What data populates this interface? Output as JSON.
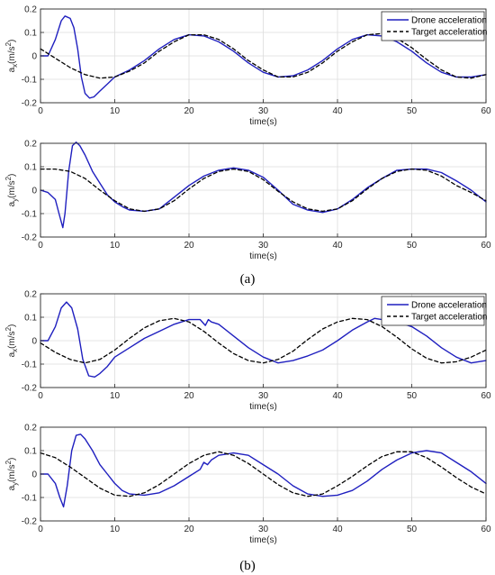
{
  "captions": {
    "a": "(a)",
    "b": "(b)"
  },
  "colors": {
    "drone": "#1f1fbf",
    "target": "#000000",
    "grid": "#dcdcdc",
    "axis": "#262626"
  },
  "chart_data": [
    {
      "type": "line",
      "panel": "a-top",
      "xlabel": "time(s)",
      "ylabel": "a_x(m/s^2)",
      "ylabel_main": "a",
      "ylabel_sub": "x",
      "ylabel_unit": "(m/s",
      "ylabel_sup": "2",
      "ylabel_close": ")",
      "xlim": [
        0,
        60
      ],
      "ylim": [
        -0.2,
        0.2
      ],
      "xticks": [
        0,
        10,
        20,
        30,
        40,
        50,
        60
      ],
      "yticks": [
        -0.2,
        -0.1,
        0,
        0.1,
        0.2
      ],
      "xtick_labels": [
        "0",
        "10",
        "20",
        "30",
        "40",
        "50",
        "60"
      ],
      "ytick_labels": [
        "-0.2",
        "-0.1",
        "0",
        "0.1",
        "0.2"
      ],
      "grid": true,
      "legend": "top-right",
      "series": [
        {
          "name": "Drone acceleration",
          "style": "solid",
          "x": [
            0,
            1,
            2,
            2.8,
            3.3,
            4,
            4.5,
            5,
            5.5,
            6,
            6.6,
            7.2,
            8,
            9,
            10,
            12,
            14,
            16,
            18,
            20,
            22,
            24,
            26,
            28,
            30,
            32,
            34,
            36,
            38,
            40,
            42,
            44,
            46,
            48,
            50,
            52,
            54,
            56,
            58,
            60
          ],
          "y": [
            0.0,
            0.0,
            0.07,
            0.15,
            0.17,
            0.16,
            0.12,
            0.03,
            -0.09,
            -0.16,
            -0.18,
            -0.175,
            -0.15,
            -0.12,
            -0.09,
            -0.06,
            -0.02,
            0.03,
            0.07,
            0.09,
            0.085,
            0.06,
            0.02,
            -0.03,
            -0.07,
            -0.09,
            -0.085,
            -0.06,
            -0.02,
            0.03,
            0.07,
            0.09,
            0.085,
            0.06,
            0.02,
            -0.03,
            -0.07,
            -0.09,
            -0.09,
            -0.08
          ]
        },
        {
          "name": "Target acceleration",
          "style": "dashed",
          "x": [
            0,
            2,
            4,
            6,
            8,
            10,
            12,
            14,
            16,
            18,
            20,
            22,
            24,
            26,
            28,
            30,
            32,
            34,
            36,
            38,
            40,
            42,
            44,
            46,
            48,
            50,
            52,
            54,
            56,
            58,
            60
          ],
          "y": [
            0.03,
            -0.01,
            -0.05,
            -0.08,
            -0.095,
            -0.09,
            -0.065,
            -0.03,
            0.02,
            0.06,
            0.09,
            0.09,
            0.07,
            0.03,
            -0.02,
            -0.06,
            -0.09,
            -0.09,
            -0.07,
            -0.03,
            0.02,
            0.06,
            0.09,
            0.095,
            0.075,
            0.035,
            -0.015,
            -0.06,
            -0.09,
            -0.095,
            -0.08
          ]
        }
      ]
    },
    {
      "type": "line",
      "panel": "a-bottom",
      "xlabel": "time(s)",
      "ylabel": "a_y(m/s^2)",
      "ylabel_main": "a",
      "ylabel_sub": "y",
      "ylabel_unit": "(m/s",
      "ylabel_sup": "2",
      "ylabel_close": ")",
      "xlim": [
        0,
        60
      ],
      "ylim": [
        -0.2,
        0.2
      ],
      "xticks": [
        0,
        10,
        20,
        30,
        40,
        50,
        60
      ],
      "yticks": [
        -0.2,
        -0.1,
        0,
        0.1,
        0.2
      ],
      "xtick_labels": [
        "0",
        "10",
        "20",
        "30",
        "40",
        "50",
        "60"
      ],
      "ytick_labels": [
        "-0.2",
        "-0.1",
        "0",
        "0.1",
        "0.2"
      ],
      "grid": true,
      "series": [
        {
          "name": "",
          "style": "solid",
          "x": [
            0,
            1,
            2,
            2.5,
            3,
            3.3,
            3.8,
            4.3,
            4.8,
            5.3,
            6,
            7,
            8,
            9,
            10,
            11,
            12,
            14,
            16,
            18,
            20,
            22,
            24,
            26,
            28,
            30,
            32,
            34,
            36,
            38,
            40,
            42,
            44,
            46,
            48,
            50,
            52,
            54,
            56,
            58,
            60
          ],
          "y": [
            0.0,
            -0.01,
            -0.04,
            -0.1,
            -0.16,
            -0.1,
            0.08,
            0.19,
            0.205,
            0.19,
            0.15,
            0.08,
            0.03,
            -0.02,
            -0.05,
            -0.07,
            -0.085,
            -0.09,
            -0.08,
            -0.03,
            0.02,
            0.06,
            0.085,
            0.095,
            0.085,
            0.055,
            0.0,
            -0.06,
            -0.085,
            -0.095,
            -0.08,
            -0.04,
            0.01,
            0.05,
            0.085,
            0.09,
            0.09,
            0.075,
            0.04,
            0.0,
            -0.05
          ]
        },
        {
          "name": "",
          "style": "dashed",
          "x": [
            0,
            2,
            4,
            6,
            8,
            10,
            12,
            14,
            16,
            18,
            20,
            22,
            24,
            26,
            28,
            30,
            32,
            34,
            36,
            38,
            40,
            42,
            44,
            46,
            48,
            50,
            52,
            54,
            56,
            58,
            60
          ],
          "y": [
            0.09,
            0.09,
            0.08,
            0.05,
            0.0,
            -0.045,
            -0.08,
            -0.09,
            -0.08,
            -0.045,
            0.005,
            0.05,
            0.08,
            0.09,
            0.08,
            0.045,
            -0.005,
            -0.05,
            -0.08,
            -0.09,
            -0.08,
            -0.045,
            0.005,
            0.05,
            0.08,
            0.09,
            0.085,
            0.06,
            0.02,
            -0.01,
            -0.045
          ]
        }
      ]
    },
    {
      "type": "line",
      "panel": "b-top",
      "xlabel": "time(s)",
      "ylabel": "a_x(m/s^2)",
      "ylabel_main": "a",
      "ylabel_sub": "x",
      "ylabel_unit": "(m/s",
      "ylabel_sup": "2",
      "ylabel_close": ")",
      "xlim": [
        0,
        60
      ],
      "ylim": [
        -0.2,
        0.2
      ],
      "xticks": [
        0,
        10,
        20,
        30,
        40,
        50,
        60
      ],
      "yticks": [
        -0.2,
        -0.1,
        0,
        0.1,
        0.2
      ],
      "xtick_labels": [
        "0",
        "10",
        "20",
        "30",
        "40",
        "50",
        "60"
      ],
      "ytick_labels": [
        "-0.2",
        "-0.1",
        "0",
        "0.1",
        "0.2"
      ],
      "grid": true,
      "legend": "top-right",
      "series": [
        {
          "name": "Drone acceleration",
          "style": "solid",
          "x": [
            0,
            1,
            2,
            2.8,
            3.5,
            4.2,
            5,
            5.7,
            6.5,
            7.3,
            8,
            9,
            10,
            12,
            14,
            16,
            18,
            20,
            21.5,
            22.2,
            22.6,
            23,
            24,
            26,
            28,
            30,
            32,
            34,
            36,
            38,
            40,
            42,
            44,
            45,
            46,
            48,
            50,
            52,
            54,
            56,
            58,
            60
          ],
          "y": [
            0.0,
            0.0,
            0.06,
            0.14,
            0.165,
            0.14,
            0.05,
            -0.08,
            -0.15,
            -0.155,
            -0.14,
            -0.11,
            -0.07,
            -0.03,
            0.01,
            0.04,
            0.07,
            0.09,
            0.09,
            0.065,
            0.09,
            0.08,
            0.07,
            0.02,
            -0.03,
            -0.07,
            -0.095,
            -0.085,
            -0.065,
            -0.04,
            0.0,
            0.045,
            0.08,
            0.095,
            0.09,
            0.08,
            0.06,
            0.02,
            -0.03,
            -0.07,
            -0.095,
            -0.085
          ]
        },
        {
          "name": "Target acceleration",
          "style": "dashed",
          "x": [
            0,
            2,
            4,
            6,
            8,
            10,
            12,
            14,
            16,
            18,
            20,
            22,
            24,
            26,
            28,
            30,
            32,
            34,
            36,
            38,
            40,
            42,
            44,
            46,
            48,
            50,
            52,
            54,
            56,
            58,
            60
          ],
          "y": [
            -0.01,
            -0.05,
            -0.08,
            -0.095,
            -0.08,
            -0.04,
            0.01,
            0.055,
            0.085,
            0.095,
            0.08,
            0.04,
            -0.01,
            -0.055,
            -0.085,
            -0.095,
            -0.08,
            -0.045,
            0.005,
            0.05,
            0.08,
            0.095,
            0.09,
            0.06,
            0.015,
            -0.035,
            -0.075,
            -0.095,
            -0.09,
            -0.07,
            -0.04
          ]
        }
      ]
    },
    {
      "type": "line",
      "panel": "b-bottom",
      "xlabel": "time(s)",
      "ylabel": "a_y(m/s^2)",
      "ylabel_main": "a",
      "ylabel_sub": "y",
      "ylabel_unit": "(m/s",
      "ylabel_sup": "2",
      "ylabel_close": ")",
      "xlim": [
        0,
        60
      ],
      "ylim": [
        -0.2,
        0.2
      ],
      "xticks": [
        0,
        10,
        20,
        30,
        40,
        50,
        60
      ],
      "yticks": [
        -0.2,
        -0.1,
        0,
        0.1,
        0.2
      ],
      "xtick_labels": [
        "0",
        "10",
        "20",
        "30",
        "40",
        "50",
        "60"
      ],
      "ytick_labels": [
        "-0.2",
        "-0.1",
        "0",
        "0.1",
        "0.2"
      ],
      "grid": true,
      "series": [
        {
          "name": "",
          "style": "solid",
          "x": [
            0,
            1,
            2,
            2.6,
            3.1,
            3.6,
            4.2,
            4.8,
            5.4,
            6,
            7,
            8,
            9,
            10,
            11,
            12,
            14,
            16,
            18,
            20,
            21.5,
            22,
            22.5,
            23,
            24,
            26,
            28,
            30,
            32,
            34,
            36,
            38,
            40,
            42,
            44,
            46,
            48,
            50,
            52,
            54,
            56,
            58,
            60
          ],
          "y": [
            0.0,
            0.0,
            -0.04,
            -0.1,
            -0.14,
            -0.05,
            0.1,
            0.165,
            0.17,
            0.15,
            0.1,
            0.04,
            0.0,
            -0.04,
            -0.07,
            -0.085,
            -0.09,
            -0.08,
            -0.05,
            -0.01,
            0.02,
            0.05,
            0.04,
            0.06,
            0.08,
            0.09,
            0.08,
            0.04,
            0.0,
            -0.05,
            -0.085,
            -0.095,
            -0.09,
            -0.07,
            -0.03,
            0.02,
            0.06,
            0.09,
            0.1,
            0.09,
            0.05,
            0.01,
            -0.04
          ]
        },
        {
          "name": "",
          "style": "dashed",
          "x": [
            0,
            2,
            4,
            6,
            8,
            10,
            12,
            14,
            16,
            18,
            20,
            22,
            24,
            26,
            28,
            30,
            32,
            34,
            36,
            38,
            40,
            42,
            44,
            46,
            48,
            50,
            52,
            54,
            56,
            58,
            60
          ],
          "y": [
            0.09,
            0.07,
            0.03,
            -0.015,
            -0.06,
            -0.09,
            -0.095,
            -0.08,
            -0.045,
            0.0,
            0.045,
            0.08,
            0.095,
            0.08,
            0.045,
            0.0,
            -0.045,
            -0.08,
            -0.095,
            -0.085,
            -0.05,
            -0.01,
            0.035,
            0.075,
            0.095,
            0.095,
            0.07,
            0.03,
            -0.015,
            -0.055,
            -0.085
          ]
        }
      ]
    }
  ]
}
